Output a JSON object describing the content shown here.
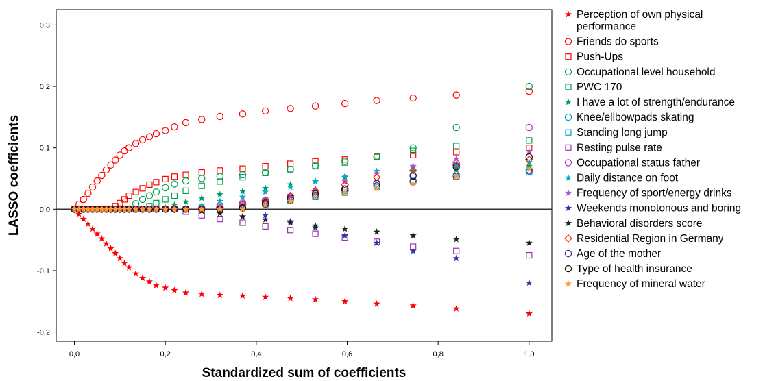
{
  "chart_data": {
    "type": "scatter",
    "title": "",
    "xlabel": "Standardized sum of coefficients",
    "ylabel": "LASSO coefficients",
    "xlim": [
      -0.04,
      1.05
    ],
    "ylim": [
      -0.215,
      0.325
    ],
    "xticks": [
      0.0,
      0.2,
      0.4,
      0.6,
      0.8,
      1.0
    ],
    "xtick_labels": [
      "0,0",
      "0,2",
      "0,4",
      "0,6",
      "0,8",
      "1,0"
    ],
    "yticks": [
      -0.2,
      -0.1,
      0.0,
      0.1,
      0.2,
      0.3
    ],
    "ytick_labels": [
      "-0,2",
      "-0,1",
      "0,0",
      "0,1",
      "0,2",
      "0,3"
    ],
    "reference_line_y": 0,
    "grid": false,
    "legend_position": "right",
    "x": [
      0.0,
      0.01,
      0.02,
      0.03,
      0.04,
      0.05,
      0.06,
      0.07,
      0.08,
      0.09,
      0.1,
      0.11,
      0.12,
      0.135,
      0.15,
      0.165,
      0.18,
      0.2,
      0.22,
      0.245,
      0.28,
      0.32,
      0.37,
      0.42,
      0.475,
      0.53,
      0.595,
      0.665,
      0.745,
      0.84,
      1.0
    ],
    "series": [
      {
        "name": "Perception of own physical performance",
        "marker": "star",
        "color": "#ff0000",
        "values": [
          0,
          -0.008,
          -0.016,
          -0.024,
          -0.032,
          -0.04,
          -0.048,
          -0.056,
          -0.064,
          -0.072,
          -0.08,
          -0.088,
          -0.095,
          -0.105,
          -0.112,
          -0.118,
          -0.124,
          -0.128,
          -0.132,
          -0.136,
          -0.138,
          -0.14,
          -0.141,
          -0.143,
          -0.145,
          -0.147,
          -0.15,
          -0.154,
          -0.157,
          -0.162,
          -0.17
        ]
      },
      {
        "name": "Friends do sports",
        "marker": "circle",
        "color": "#ff0000",
        "values": [
          0,
          0.008,
          0.016,
          0.026,
          0.036,
          0.046,
          0.055,
          0.064,
          0.072,
          0.08,
          0.088,
          0.095,
          0.1,
          0.107,
          0.113,
          0.118,
          0.123,
          0.128,
          0.134,
          0.141,
          0.146,
          0.151,
          0.155,
          0.16,
          0.164,
          0.168,
          0.172,
          0.177,
          0.181,
          0.186,
          0.192
        ]
      },
      {
        "name": "Push-Ups",
        "marker": "square",
        "color": "#ff0000",
        "values": [
          0,
          0,
          0,
          0,
          0,
          0,
          0,
          0,
          0,
          0.005,
          0.01,
          0.016,
          0.022,
          0.028,
          0.034,
          0.04,
          0.044,
          0.049,
          0.053,
          0.056,
          0.06,
          0.063,
          0.066,
          0.07,
          0.074,
          0.078,
          0.081,
          0.085,
          0.088,
          0.093,
          0.1
        ]
      },
      {
        "name": "Occupational level household",
        "marker": "circle",
        "color": "#00a04c",
        "values": [
          0,
          0,
          0,
          0,
          0,
          0,
          0,
          0,
          0,
          0,
          0,
          0,
          0,
          0.009,
          0.016,
          0.022,
          0.028,
          0.035,
          0.041,
          0.046,
          0.05,
          0.053,
          0.056,
          0.06,
          0.065,
          0.071,
          0.078,
          0.086,
          0.1,
          0.133,
          0.2
        ]
      },
      {
        "name": "PWC 170",
        "marker": "square",
        "color": "#00a04c",
        "values": [
          0,
          0,
          0,
          0,
          0,
          0,
          0,
          0,
          0,
          0,
          0,
          0,
          0,
          0,
          0,
          0.005,
          0.01,
          0.016,
          0.022,
          0.03,
          0.038,
          0.045,
          0.052,
          0.059,
          0.065,
          0.07,
          0.076,
          0.086,
          0.095,
          0.103,
          0.112
        ]
      },
      {
        "name": "I have a lot of strength/endurance",
        "marker": "star",
        "color": "#009966",
        "values": [
          0,
          0,
          0,
          0,
          0,
          0,
          0,
          0,
          0,
          0,
          0,
          0,
          0,
          0,
          0,
          0,
          0,
          0.003,
          0.007,
          0.012,
          0.018,
          0.024,
          0.029,
          0.034,
          0.04,
          0.046,
          0.052,
          0.058,
          0.062,
          0.066,
          0.07
        ]
      },
      {
        "name": "Knee/ellbowpads skating",
        "marker": "circle",
        "color": "#00a0c0",
        "values": [
          0,
          0,
          0,
          0,
          0,
          0,
          0,
          0,
          0,
          0,
          0,
          0,
          0,
          0,
          0,
          0,
          0,
          0,
          0,
          0,
          0,
          0.004,
          0.008,
          0.013,
          0.018,
          0.023,
          0.03,
          0.038,
          0.047,
          0.056,
          0.064
        ]
      },
      {
        "name": "Standing long jump",
        "marker": "square",
        "color": "#00a0c0",
        "values": [
          0,
          0,
          0,
          0,
          0,
          0,
          0,
          0,
          0,
          0,
          0,
          0,
          0,
          0,
          0,
          0,
          0,
          0,
          0,
          0,
          0,
          0,
          0.003,
          0.008,
          0.014,
          0.02,
          0.027,
          0.036,
          0.045,
          0.053,
          0.06
        ]
      },
      {
        "name": "Resting pulse rate",
        "marker": "square",
        "color": "#9933aa",
        "values": [
          0,
          0,
          0,
          0,
          0,
          0,
          0,
          0,
          0,
          0,
          0,
          0,
          0,
          0,
          0,
          0,
          0,
          0,
          0,
          -0.004,
          -0.01,
          -0.016,
          -0.022,
          -0.028,
          -0.034,
          -0.04,
          -0.046,
          -0.053,
          -0.061,
          -0.068,
          -0.075
        ]
      },
      {
        "name": "Occupational status father",
        "marker": "circle",
        "color": "#aa33cc",
        "values": [
          0,
          0,
          0,
          0,
          0,
          0,
          0,
          0,
          0,
          0,
          0,
          0,
          0,
          0,
          0,
          0,
          0,
          0,
          0,
          0,
          0.002,
          0.006,
          0.01,
          0.015,
          0.02,
          0.026,
          0.033,
          0.042,
          0.055,
          0.075,
          0.133
        ]
      },
      {
        "name": "Daily distance on foot",
        "marker": "star",
        "color": "#00aacc",
        "values": [
          0,
          0,
          0,
          0,
          0,
          0,
          0,
          0,
          0,
          0,
          0,
          0,
          0,
          0,
          0,
          0,
          0,
          0,
          0,
          0.002,
          0.006,
          0.013,
          0.02,
          0.028,
          0.036,
          0.045,
          0.054,
          0.062,
          0.068,
          0.072,
          0.076
        ]
      },
      {
        "name": "Frequency of sport/energy drinks",
        "marker": "star",
        "color": "#aa55cc",
        "values": [
          0,
          0,
          0,
          0,
          0,
          0,
          0,
          0,
          0,
          0,
          0,
          0,
          0,
          0,
          0,
          0,
          0,
          0,
          0,
          0,
          0,
          0.003,
          0.008,
          0.015,
          0.023,
          0.033,
          0.045,
          0.058,
          0.07,
          0.082,
          0.094
        ]
      },
      {
        "name": "Weekends monotonous and boring",
        "marker": "star",
        "color": "#3333aa",
        "values": [
          0,
          0,
          0,
          0,
          0,
          0,
          0,
          0,
          0,
          0,
          0,
          0,
          0,
          0,
          0,
          0,
          0,
          0,
          0,
          0,
          0,
          0,
          0,
          -0.01,
          -0.02,
          -0.03,
          -0.043,
          -0.055,
          -0.068,
          -0.08,
          -0.12
        ]
      },
      {
        "name": "Behavioral disorders score",
        "marker": "star",
        "color": "#222222",
        "values": [
          0,
          0,
          0,
          0,
          0,
          0,
          0,
          0,
          0,
          0,
          0,
          0,
          0,
          0,
          0,
          0,
          0,
          0,
          0,
          0,
          -0.003,
          -0.007,
          -0.012,
          -0.017,
          -0.022,
          -0.027,
          -0.032,
          -0.037,
          -0.043,
          -0.049,
          -0.055
        ]
      },
      {
        "name": "Residential Region in Germany",
        "marker": "diamond",
        "color": "#ff2200",
        "values": [
          0,
          0,
          0,
          0,
          0,
          0,
          0,
          0,
          0,
          0,
          0,
          0,
          0,
          0,
          0,
          0,
          0,
          0,
          0,
          0,
          0,
          0.003,
          0.008,
          0.014,
          0.022,
          0.03,
          0.04,
          0.052,
          0.063,
          0.072,
          0.081
        ]
      },
      {
        "name": "Age of the mother",
        "marker": "circle",
        "color": "#3333aa",
        "values": [
          0,
          0,
          0,
          0,
          0,
          0,
          0,
          0,
          0,
          0,
          0,
          0,
          0,
          0,
          0,
          0,
          0,
          0,
          0,
          0,
          0,
          0,
          0.003,
          0.008,
          0.015,
          0.022,
          0.03,
          0.038,
          0.045,
          0.053,
          0.062
        ]
      },
      {
        "name": "Type of health insurance",
        "marker": "circle",
        "color": "#111111",
        "values": [
          0,
          0,
          0,
          0,
          0,
          0,
          0,
          0,
          0,
          0,
          0,
          0,
          0,
          0,
          0,
          0,
          0,
          0,
          0,
          0,
          0,
          0,
          0.002,
          0.01,
          0.018,
          0.025,
          0.033,
          0.042,
          0.054,
          0.069,
          0.085
        ]
      },
      {
        "name": "Frequency of mineral water",
        "marker": "star",
        "color": "#ff9933",
        "values": [
          0,
          0,
          0,
          0,
          0,
          0,
          0,
          0,
          0,
          0,
          0,
          0,
          0,
          0,
          0,
          0,
          0,
          0,
          0,
          0,
          0,
          0,
          0,
          0.007,
          0.013,
          0.02,
          0.027,
          0.034,
          0.041,
          0.053,
          0.066
        ]
      }
    ]
  },
  "legend": {
    "items": [
      {
        "lines": [
          "Perception of own physical",
          "performance"
        ],
        "marker": "star",
        "color": "#ff0000"
      },
      {
        "lines": [
          "Friends do sports"
        ],
        "marker": "circle",
        "color": "#ff0000"
      },
      {
        "lines": [
          "Push-Ups"
        ],
        "marker": "square",
        "color": "#ff0000"
      },
      {
        "lines": [
          "Occupational level household"
        ],
        "marker": "circle",
        "color": "#00a04c"
      },
      {
        "lines": [
          "PWC 170"
        ],
        "marker": "square",
        "color": "#00a04c"
      },
      {
        "lines": [
          "I have a lot of strength/endurance"
        ],
        "marker": "star",
        "color": "#009966"
      },
      {
        "lines": [
          "Knee/ellbowpads skating"
        ],
        "marker": "circle",
        "color": "#00a0c0"
      },
      {
        "lines": [
          "Standing long jump"
        ],
        "marker": "square",
        "color": "#00a0c0"
      },
      {
        "lines": [
          "Resting pulse rate"
        ],
        "marker": "square",
        "color": "#9933aa"
      },
      {
        "lines": [
          "Occupational status father"
        ],
        "marker": "circle",
        "color": "#aa33cc"
      },
      {
        "lines": [
          "Daily distance on foot"
        ],
        "marker": "star",
        "color": "#00aacc"
      },
      {
        "lines": [
          "Frequency of sport/energy drinks"
        ],
        "marker": "star",
        "color": "#aa55cc"
      },
      {
        "lines": [
          "Weekends monotonous and boring"
        ],
        "marker": "star",
        "color": "#3333aa"
      },
      {
        "lines": [
          "Behavioral disorders score"
        ],
        "marker": "star",
        "color": "#222222"
      },
      {
        "lines": [
          "Residential Region in Germany"
        ],
        "marker": "diamond",
        "color": "#ff2200"
      },
      {
        "lines": [
          "Age of the mother"
        ],
        "marker": "circle",
        "color": "#3333aa"
      },
      {
        "lines": [
          "Type of health insurance"
        ],
        "marker": "circle",
        "color": "#111111"
      },
      {
        "lines": [
          "Frequency of mineral water"
        ],
        "marker": "star",
        "color": "#ff9933"
      }
    ]
  }
}
